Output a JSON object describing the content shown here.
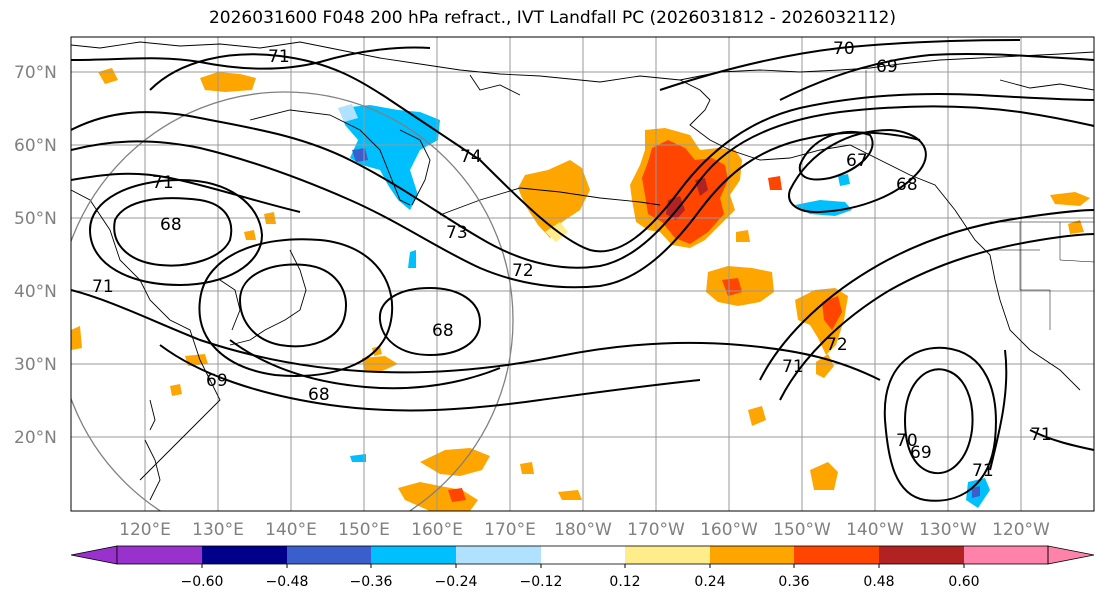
{
  "title": "2026031600 F048 200 hPa refract., IVT Landfall PC (2026031812 - 2026032112)",
  "lat_labels": [
    "70°N",
    "60°N",
    "50°N",
    "40°N",
    "30°N",
    "20°N"
  ],
  "lon_labels": [
    "120°E",
    "130°E",
    "140°E",
    "150°E",
    "160°E",
    "170°E",
    "180°W",
    "170°W",
    "160°W",
    "150°W",
    "140°W",
    "130°W",
    "120°W"
  ],
  "contour_labels": [
    "71",
    "70",
    "69",
    "74",
    "71",
    "68",
    "67",
    "68",
    "73",
    "72",
    "71",
    "68",
    "71",
    "72",
    "69",
    "68",
    "70",
    "69",
    "71",
    "71"
  ],
  "colorbar": {
    "colors": [
      "#9932cc",
      "#00008b",
      "#3a5fcd",
      "#00bfff",
      "#b0e2ff",
      "#ffffff",
      "#ffec8b",
      "#ffa500",
      "#ff4500",
      "#b22222",
      "#ff82ab"
    ],
    "tick_labels": [
      "−0.60",
      "−0.48",
      "−0.36",
      "−0.24",
      "−0.12",
      "0.12",
      "0.24",
      "0.36",
      "0.48",
      "0.60"
    ]
  },
  "fill_colors": {
    "orange": "#ffa500",
    "red": "#ff4500",
    "darkred": "#b22222",
    "yellow": "#ffec8b",
    "cyan": "#00bfff",
    "lightblue": "#b0e2ff",
    "blue": "#3a5fcd"
  }
}
